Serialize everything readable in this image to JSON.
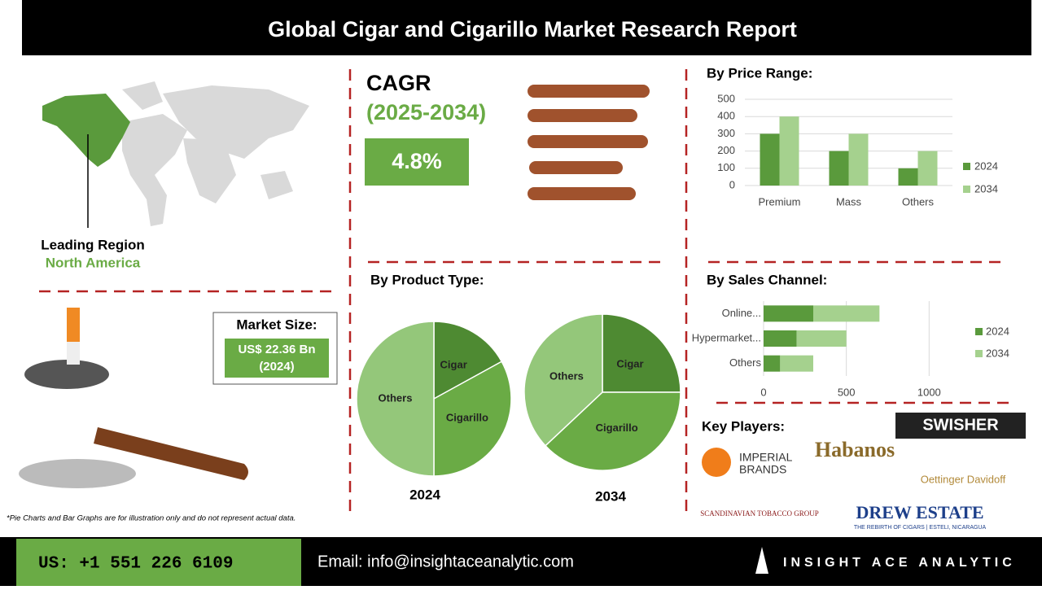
{
  "header": {
    "title": "Global Cigar and Cigarillo Market Research Report"
  },
  "cagr": {
    "label": "CAGR",
    "period": "(2025-2034)",
    "value": "4.8%"
  },
  "region": {
    "label": "Leading Region",
    "value": "North America"
  },
  "market_size": {
    "label": "Market Size:",
    "value": "US$ 22.36 Bn",
    "year": "(2024)"
  },
  "product_type_title": "By Product Type:",
  "chart_data": [
    {
      "type": "bar",
      "title": "By Price Range:",
      "categories": [
        "Premium",
        "Mass",
        "Others"
      ],
      "series": [
        {
          "name": "2024",
          "color": "#5a9a3c",
          "values": [
            300,
            200,
            100
          ]
        },
        {
          "name": "2034",
          "color": "#a5d18e",
          "values": [
            400,
            300,
            200
          ]
        }
      ],
      "ylim": [
        0,
        500
      ],
      "yticks": [
        0,
        100,
        200,
        300,
        400,
        500
      ],
      "grid": true,
      "legend": "right"
    },
    {
      "type": "barh",
      "stacked": true,
      "title": "By Sales Channel:",
      "categories": [
        "Online...",
        "Hypermarket...",
        "Others"
      ],
      "series": [
        {
          "name": "2024",
          "color": "#5a9a3c",
          "values": [
            300,
            200,
            100
          ]
        },
        {
          "name": "2034",
          "color": "#a5d18e",
          "values": [
            400,
            300,
            200
          ]
        }
      ],
      "xlim": [
        0,
        1200
      ],
      "xticks": [
        0,
        500,
        1000
      ],
      "grid": true,
      "legend": "right"
    },
    {
      "type": "pie",
      "title": "2024",
      "categories": [
        "Cigar",
        "Cigarillo",
        "Others"
      ],
      "values": [
        17,
        33,
        50
      ],
      "colors": [
        "#4e8a32",
        "#6aab45",
        "#94c77a"
      ]
    },
    {
      "type": "pie",
      "title": "2034",
      "categories": [
        "Cigar",
        "Cigarillo",
        "Others"
      ],
      "values": [
        25,
        38,
        37
      ],
      "colors": [
        "#4e8a32",
        "#6aab45",
        "#94c77a"
      ]
    }
  ],
  "key_players": {
    "title": "Key Players:",
    "names": [
      "SWISHER",
      "IMPERIAL",
      "BRANDS",
      "Habanos",
      "Oettinger Davidoff",
      "SCANDINAVIAN TOBACCO GROUP",
      "DREW ESTATE",
      "THE REBIRTH OF CIGARS | ESTELI, NICARAGUA"
    ]
  },
  "note": "*Pie Charts and Bar Graphs are for illustration only and do not represent actual data.",
  "footer": {
    "phone": "US: +1 551 226 6109",
    "email": "Email: info@insightaceanalytic.com",
    "brand": "INSIGHT ACE ANALYTIC"
  }
}
